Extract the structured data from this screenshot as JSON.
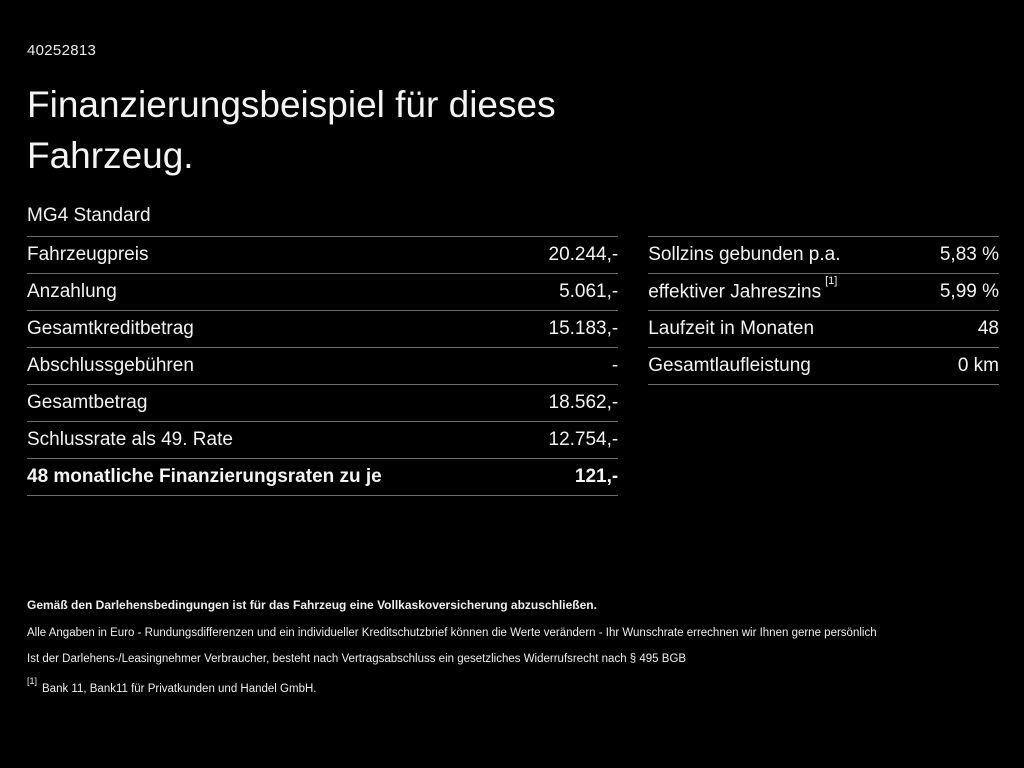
{
  "doc_id": "40252813",
  "title": "Finanzierungsbeispiel für dieses Fahrzeug.",
  "model": "MG4 Standard",
  "colors": {
    "background": "#000000",
    "text": "#ffffff",
    "divider": "#6e6e6e"
  },
  "left_table": {
    "rows": [
      {
        "label": "Fahrzeugpreis",
        "value": "20.244,-"
      },
      {
        "label": "Anzahlung",
        "value": "5.061,-"
      },
      {
        "label": "Gesamtkreditbetrag",
        "value": "15.183,-"
      },
      {
        "label": "Abschlussgebühren",
        "value": "-"
      },
      {
        "label": "Gesamtbetrag",
        "value": "18.562,-"
      },
      {
        "label": "Schlussrate als 49. Rate",
        "value": "12.754,-"
      },
      {
        "label": "48 monatliche Finanzierungsraten zu je",
        "value": "121,-"
      }
    ]
  },
  "right_table": {
    "rows": [
      {
        "label": "Sollzins gebunden p.a.",
        "value": "5,83 %"
      },
      {
        "label": "effektiver Jahreszins",
        "sup": "[1]",
        "value": "5,99 %"
      },
      {
        "label": "Laufzeit in Monaten",
        "value": "48"
      },
      {
        "label": "Gesamtlaufleistung",
        "value": "0 km"
      }
    ]
  },
  "footer": {
    "insurance_note": "Gemäß den Darlehensbedingungen ist für das Fahrzeug eine Vollkaskoversicherung abzuschließen.",
    "disclaimer1": "Alle Angaben in Euro - Rundungsdifferenzen und ein individueller Kreditschutzbrief können die Werte verändern - Ihr Wunschrate errechnen wir Ihnen gerne persönlich",
    "disclaimer2": "Ist der Darlehens-/Leasingnehmer Verbraucher, besteht nach Vertragsabschluss ein gesetzliches Widerrufsrecht nach § 495 BGB",
    "ref_marker": "[1]",
    "ref_text": "Bank 11, Bank11 für Privatkunden und Handel GmbH."
  }
}
